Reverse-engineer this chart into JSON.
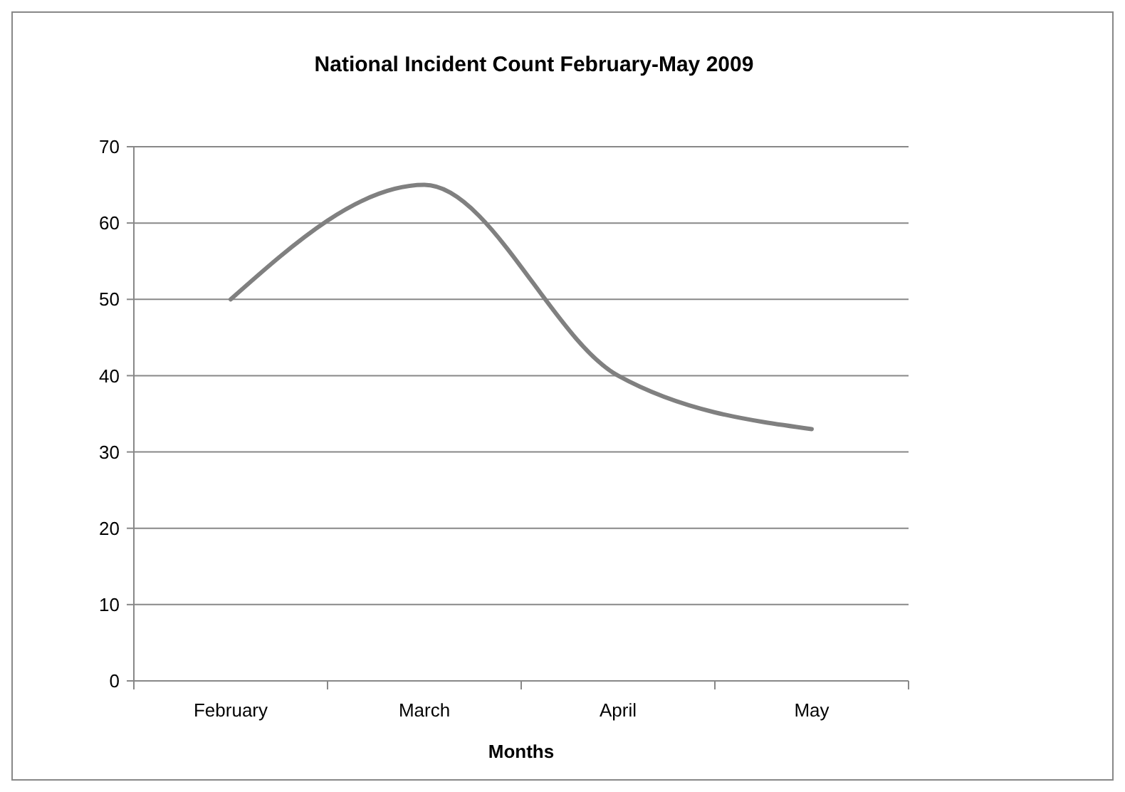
{
  "chart_data": {
    "type": "line",
    "title": "National Incident Count February-May 2009",
    "xlabel": "Months",
    "categories": [
      "February",
      "March",
      "April",
      "May"
    ],
    "series": [
      {
        "color": "#808080",
        "values": [
          50,
          65,
          40,
          33
        ]
      }
    ],
    "ylim": [
      0,
      70
    ],
    "yticks": [
      0,
      10,
      20,
      30,
      40,
      50,
      60,
      70
    ],
    "grid": "y",
    "marker": "none",
    "line_style": "solid"
  }
}
